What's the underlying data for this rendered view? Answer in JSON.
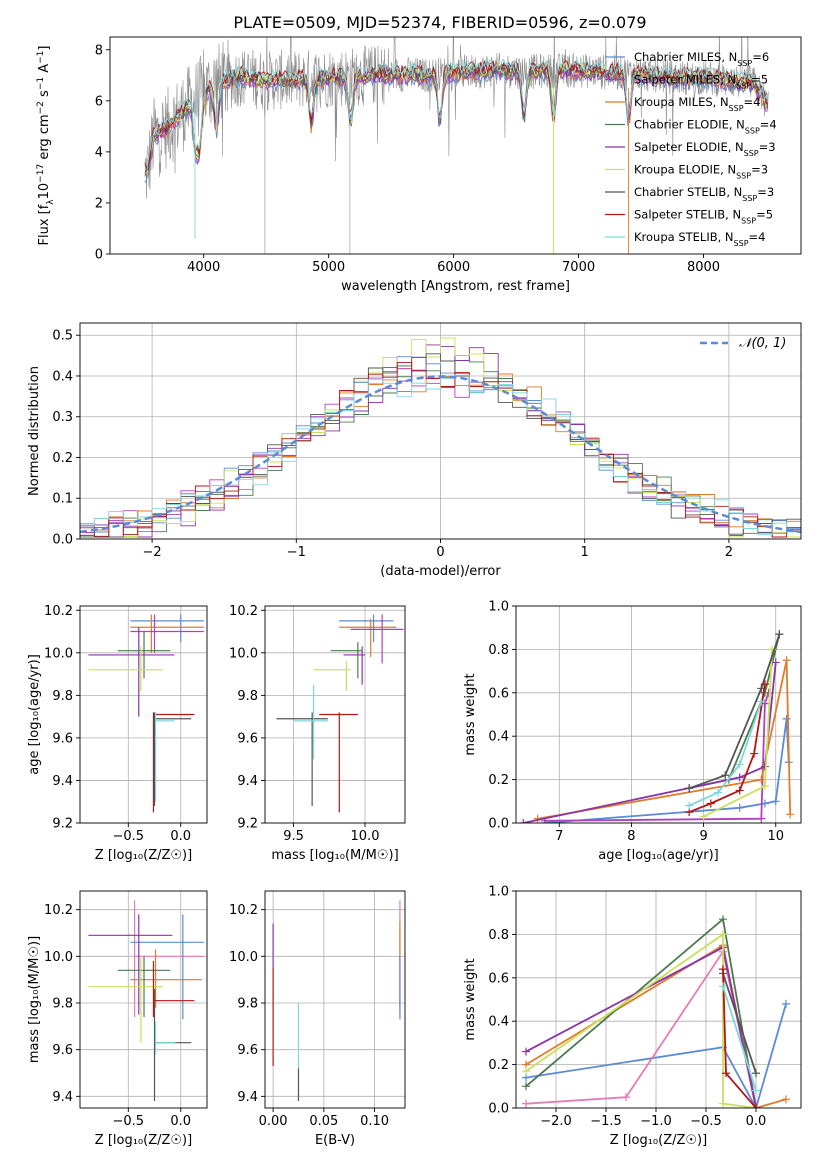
{
  "figure_title": "PLATE=0509, MJD=52374, FIBERID=0596, z=0.079",
  "colors": {
    "Chabrier MILES": "#5b8bd5",
    "Salpeter MILES": "#b040c0",
    "Kroupa MILES": "#e07b2a",
    "Chabrier ELODIE": "#4d7a50",
    "Salpeter ELODIE": "#8b34a8",
    "Kroupa ELODIE": "#c9e05a",
    "Chabrier STELIB": "#555555",
    "Salpeter STELIB": "#b31616",
    "Kroupa STELIB": "#7fd6dc",
    "pink": "#e07fb6",
    "data": "#8c8c8c",
    "normal": "#5b8bd5"
  },
  "chart_data": [
    {
      "id": "spectrum",
      "type": "line",
      "xlabel": "wavelength [Angstrom, rest frame]",
      "ylabel_parts": [
        "Flux [f",
        "λ",
        "10",
        "−17",
        " erg cm",
        "−2",
        " s",
        "−1",
        " A",
        "−1",
        "]"
      ],
      "xlim": [
        3250,
        8780
      ],
      "ylim": [
        0,
        8.5
      ],
      "xticks": [
        4000,
        5000,
        6000,
        7000,
        8000
      ],
      "yticks": [
        0,
        2,
        4,
        6,
        8
      ],
      "legend": [
        {
          "name": "Chabrier MILES",
          "n": "6"
        },
        {
          "name": "Salpeter MILES",
          "n": "5"
        },
        {
          "name": "Kroupa MILES",
          "n": "4"
        },
        {
          "name": "Chabrier ELODIE",
          "n": "4"
        },
        {
          "name": "Salpeter ELODIE",
          "n": "3"
        },
        {
          "name": "Kroupa ELODIE",
          "n": "3"
        },
        {
          "name": "Chabrier STELIB",
          "n": "3"
        },
        {
          "name": "Salpeter STELIB",
          "n": "5"
        },
        {
          "name": "Kroupa STELIB",
          "n": "4"
        }
      ],
      "continuum_x": [
        3550,
        3600,
        3700,
        3800,
        3900,
        4000,
        4100,
        4300,
        4500,
        4800,
        5000,
        5200,
        5500,
        5800,
        6000,
        6300,
        6600,
        7000,
        7300,
        7500,
        7800,
        8000,
        8200,
        8400,
        8520
      ],
      "continuum_y": [
        3.2,
        4.6,
        4.9,
        5.4,
        5.9,
        6.3,
        6.7,
        6.95,
        6.8,
        6.85,
        6.9,
        6.95,
        7.05,
        7.0,
        7.1,
        7.2,
        7.15,
        7.2,
        7.1,
        7.05,
        6.9,
        6.9,
        6.8,
        6.7,
        5.8
      ],
      "absorption_lines": [
        3934,
        3969,
        4102,
        4861,
        5175,
        5890,
        6563,
        6800,
        7400
      ]
    },
    {
      "id": "residuals",
      "type": "step",
      "xlabel": "(data-model)/error",
      "ylabel": "Normed distribution",
      "xlim": [
        -2.5,
        2.5
      ],
      "ylim": [
        0,
        0.53
      ],
      "xticks": [
        -2,
        -1,
        0,
        1,
        2
      ],
      "xtick_labels": [
        "−2",
        "−1",
        "0",
        "1",
        "2"
      ],
      "yticks": [
        0,
        0.1,
        0.2,
        0.3,
        0.4,
        0.5
      ],
      "ytick_labels": [
        "0.0",
        "0.1",
        "0.2",
        "0.3",
        "0.4",
        "0.5"
      ],
      "legend": [
        "𝒩(0, 1)"
      ],
      "bin_width": 0.1
    },
    {
      "id": "age_vs_Z",
      "type": "errorbar",
      "xlabel": "Z [log₁₀(Z/Z☉)]",
      "ylabel": "age  [log₁₀(age/yr)]",
      "xlim": [
        -0.96,
        0.25
      ],
      "ylim": [
        9.2,
        10.22
      ],
      "xticks": [
        -0.5,
        0
      ],
      "xtick_labels": [
        "−0.5",
        "0.0"
      ],
      "yticks": [
        9.2,
        9.4,
        9.6,
        9.8,
        10.0,
        10.2
      ],
      "ytick_labels": [
        "9.2",
        "9.4",
        "9.6",
        "9.8",
        "10.0",
        "10.2"
      ],
      "points": [
        {
          "c": "Chabrier MILES",
          "x": 0.0,
          "y": 10.15,
          "xe": [
            -0.48,
            0.22
          ],
          "ye": [
            10.05,
            10.18
          ]
        },
        {
          "c": "Kroupa MILES",
          "x": -0.28,
          "y": 10.12,
          "xe": [
            -0.48,
            0.22
          ],
          "ye": [
            10.0,
            10.18
          ]
        },
        {
          "c": "Salpeter MILES",
          "x": -0.25,
          "y": 10.1,
          "xe": [
            -0.48,
            0.22
          ],
          "ye": [
            10.0,
            10.18
          ]
        },
        {
          "c": "Chabrier ELODIE",
          "x": -0.35,
          "y": 10.01,
          "xe": [
            -0.6,
            -0.1
          ],
          "ye": [
            9.88,
            10.1
          ]
        },
        {
          "c": "Salpeter ELODIE",
          "x": -0.4,
          "y": 9.99,
          "xe": [
            -0.88,
            -0.06
          ],
          "ye": [
            9.7,
            10.12
          ]
        },
        {
          "c": "Kroupa ELODIE",
          "x": -0.38,
          "y": 9.92,
          "xe": [
            -0.88,
            -0.17
          ],
          "ye": [
            9.82,
            10.03
          ]
        },
        {
          "c": "Salpeter STELIB",
          "x": -0.26,
          "y": 9.71,
          "xe": [
            -0.26,
            0.13
          ],
          "ye": [
            9.25,
            9.72
          ]
        },
        {
          "c": "Chabrier STELIB",
          "x": -0.25,
          "y": 9.69,
          "xe": [
            -0.25,
            0.1
          ],
          "ye": [
            9.28,
            9.72
          ]
        },
        {
          "c": "Kroupa STELIB",
          "x": -0.24,
          "y": 9.68,
          "xe": [
            -0.24,
            -0.06
          ],
          "ye": [
            9.3,
            9.72
          ]
        }
      ]
    },
    {
      "id": "age_vs_mass",
      "type": "errorbar",
      "xlabel": "mass [log₁₀(M/M☉)]",
      "ylabel": "",
      "xlim": [
        9.3,
        10.28
      ],
      "ylim": [
        9.2,
        10.22
      ],
      "xticks": [
        9.5,
        10.0
      ],
      "xtick_labels": [
        "9.5",
        "10.0"
      ],
      "yticks": [
        9.2,
        9.4,
        9.6,
        9.8,
        10.0,
        10.2
      ],
      "ytick_labels": [
        "9.2",
        "9.4",
        "9.6",
        "9.8",
        "10.0",
        "10.2"
      ],
      "points": [
        {
          "c": "Chabrier MILES",
          "x": 10.06,
          "y": 10.15,
          "xe": [
            9.82,
            10.2
          ],
          "ye": [
            10.05,
            10.18
          ]
        },
        {
          "c": "Kroupa MILES",
          "x": 10.04,
          "y": 10.12,
          "xe": [
            9.82,
            10.22
          ],
          "ye": [
            9.98,
            10.16
          ]
        },
        {
          "c": "Salpeter MILES",
          "x": 10.12,
          "y": 10.11,
          "xe": [
            9.9,
            10.27
          ],
          "ye": [
            9.95,
            10.18
          ]
        },
        {
          "c": "Chabrier ELODIE",
          "x": 9.95,
          "y": 10.01,
          "xe": [
            9.76,
            9.98
          ],
          "ye": [
            9.88,
            10.05
          ]
        },
        {
          "c": "Salpeter ELODIE",
          "x": 9.98,
          "y": 9.99,
          "xe": [
            9.85,
            10.0
          ],
          "ye": [
            9.85,
            10.03
          ]
        },
        {
          "c": "Kroupa ELODIE",
          "x": 9.87,
          "y": 9.92,
          "xe": [
            9.64,
            9.9
          ],
          "ye": [
            9.82,
            9.96
          ]
        },
        {
          "c": "Salpeter STELIB",
          "x": 9.82,
          "y": 9.71,
          "xe": [
            9.68,
            9.95
          ],
          "ye": [
            9.25,
            9.72
          ]
        },
        {
          "c": "Chabrier STELIB",
          "x": 9.63,
          "y": 9.69,
          "xe": [
            9.38,
            9.74
          ],
          "ye": [
            9.28,
            9.72
          ]
        },
        {
          "c": "Kroupa STELIB",
          "x": 9.64,
          "y": 9.68,
          "xe": [
            9.5,
            9.74
          ],
          "ye": [
            9.5,
            9.85
          ]
        }
      ]
    },
    {
      "id": "mw_vs_age",
      "type": "line",
      "xlabel": "age  [log₁₀(age/yr)]",
      "ylabel": "mass weight",
      "xlim": [
        6.4,
        10.35
      ],
      "ylim": [
        0,
        1.0
      ],
      "xticks": [
        7,
        8,
        9,
        10
      ],
      "xtick_labels": [
        "7",
        "8",
        "9",
        "10"
      ],
      "yticks": [
        0,
        0.2,
        0.4,
        0.6,
        0.8,
        1.0
      ],
      "ytick_labels": [
        "0.0",
        "0.2",
        "0.4",
        "0.6",
        "0.8",
        "1.0"
      ],
      "series": [
        {
          "c": "Chabrier MILES",
          "x": [
            6.8,
            9.5,
            9.85,
            10.0,
            10.15,
            10.18
          ],
          "y": [
            0.0,
            0.07,
            0.09,
            0.1,
            0.48,
            0.28
          ]
        },
        {
          "c": "Salpeter MILES",
          "x": [
            6.8,
            9.8,
            9.85,
            9.9
          ],
          "y": [
            0.01,
            0.02,
            0.55,
            0.6
          ]
        },
        {
          "c": "Kroupa MILES",
          "x": [
            6.7,
            9.8,
            10.15,
            10.2
          ],
          "y": [
            0.02,
            0.2,
            0.75,
            0.04
          ]
        },
        {
          "c": "Chabrier ELODIE",
          "x": [
            8.8,
            9.35,
            9.85,
            10.05
          ],
          "y": [
            0.16,
            0.2,
            0.6,
            0.87
          ]
        },
        {
          "c": "Salpeter ELODIE",
          "x": [
            6.5,
            9.5,
            9.85,
            10.0
          ],
          "y": [
            0.0,
            0.21,
            0.26,
            0.74
          ]
        },
        {
          "c": "Kroupa ELODIE",
          "x": [
            9.0,
            9.85,
            9.95
          ],
          "y": [
            0.03,
            0.17,
            0.8
          ]
        },
        {
          "c": "Chabrier STELIB",
          "x": [
            8.8,
            9.3,
            9.8,
            10.05
          ],
          "y": [
            0.16,
            0.22,
            0.62,
            0.87
          ]
        },
        {
          "c": "Salpeter STELIB",
          "x": [
            8.8,
            9.1,
            9.5,
            9.7,
            9.85
          ],
          "y": [
            0.05,
            0.09,
            0.15,
            0.32,
            0.64
          ]
        },
        {
          "c": "Kroupa STELIB",
          "x": [
            8.8,
            9.2,
            9.5,
            9.8
          ],
          "y": [
            0.08,
            0.14,
            0.27,
            0.56
          ]
        }
      ]
    },
    {
      "id": "mass_vs_Z",
      "type": "errorbar",
      "xlabel": "Z [log₁₀(Z/Z☉)]",
      "ylabel": "mass [log₁₀(M/M☉)]",
      "xlim": [
        -0.96,
        0.25
      ],
      "ylim": [
        9.35,
        10.28
      ],
      "xticks": [
        -0.5,
        0
      ],
      "xtick_labels": [
        "−0.5",
        "0.0"
      ],
      "yticks": [
        9.4,
        9.6,
        9.8,
        10.0,
        10.2
      ],
      "ytick_labels": [
        "9.4",
        "9.6",
        "9.8",
        "10.0",
        "10.2"
      ],
      "points": [
        {
          "c": "pink",
          "x": -0.44,
          "y": 10.0,
          "xe": [
            -0.44,
            0.22
          ],
          "ye": [
            9.74,
            10.24
          ]
        },
        {
          "c": "Chabrier MILES",
          "x": 0.02,
          "y": 10.06,
          "xe": [
            -0.48,
            0.22
          ],
          "ye": [
            9.73,
            10.18
          ]
        },
        {
          "c": "Salpeter ELODIE",
          "x": -0.4,
          "y": 10.09,
          "xe": [
            -0.88,
            -0.08
          ],
          "ye": [
            9.75,
            10.18
          ]
        },
        {
          "c": "Kroupa MILES",
          "x": -0.24,
          "y": 9.9,
          "xe": [
            -0.48,
            0.2
          ],
          "ye": [
            9.78,
            10.03
          ]
        },
        {
          "c": "Chabrier ELODIE",
          "x": -0.35,
          "y": 9.94,
          "xe": [
            -0.6,
            -0.1
          ],
          "ye": [
            9.74,
            10.0
          ]
        },
        {
          "c": "Kroupa ELODIE",
          "x": -0.38,
          "y": 9.87,
          "xe": [
            -0.88,
            -0.17
          ],
          "ye": [
            9.63,
            10.0
          ]
        },
        {
          "c": "Salpeter STELIB",
          "x": -0.26,
          "y": 9.81,
          "xe": [
            -0.26,
            0.13
          ],
          "ye": [
            9.74,
            9.98
          ]
        },
        {
          "c": "Chabrier STELIB",
          "x": -0.25,
          "y": 9.63,
          "xe": [
            -0.25,
            0.1
          ],
          "ye": [
            9.38,
            9.86
          ]
        },
        {
          "c": "Kroupa STELIB",
          "x": -0.24,
          "y": 9.63,
          "xe": [
            -0.24,
            -0.05
          ],
          "ye": [
            9.58,
            9.72
          ]
        }
      ]
    },
    {
      "id": "mass_vs_ebv",
      "type": "errorbar",
      "xlabel": "E(B-V)",
      "ylabel": "",
      "xlim": [
        -0.008,
        0.13
      ],
      "ylim": [
        9.35,
        10.28
      ],
      "xticks": [
        0,
        0.05,
        0.1
      ],
      "xtick_labels": [
        "0.00",
        "0.05",
        "0.10"
      ],
      "yticks": [
        9.4,
        9.6,
        9.8,
        10.0,
        10.2
      ],
      "ytick_labels": [
        "9.4",
        "9.6",
        "9.8",
        "10.0",
        "10.2"
      ],
      "points": [
        {
          "c": "Salpeter ELODIE",
          "x": 0.0,
          "ye": [
            9.95,
            10.14
          ]
        },
        {
          "c": "Salpeter STELIB",
          "x": 0.0,
          "ye": [
            9.53,
            9.95
          ]
        },
        {
          "c": "Chabrier STELIB",
          "x": 0.025,
          "ye": [
            9.38,
            9.52
          ]
        },
        {
          "c": "Kroupa STELIB",
          "x": 0.025,
          "ye": [
            9.52,
            9.8
          ]
        },
        {
          "c": "pink",
          "x": 0.125,
          "ye": [
            9.75,
            10.24
          ]
        },
        {
          "c": "Kroupa MILES",
          "x": 0.125,
          "ye": [
            9.78,
            10.15
          ]
        },
        {
          "c": "Chabrier MILES",
          "x": 0.125,
          "ye": [
            9.73,
            10.0
          ]
        }
      ]
    },
    {
      "id": "mw_vs_Z",
      "type": "line",
      "xlabel": "Z [log₁₀(Z/Z☉)]",
      "ylabel": "mass weight",
      "xlim": [
        -2.4,
        0.45
      ],
      "ylim": [
        0,
        1.0
      ],
      "xticks": [
        -2.0,
        -1.5,
        -1.0,
        -0.5,
        0.0
      ],
      "xtick_labels": [
        "−2.0",
        "−1.5",
        "−1.0",
        "−0.5",
        "0.0"
      ],
      "yticks": [
        0,
        0.2,
        0.4,
        0.6,
        0.8,
        1.0
      ],
      "ytick_labels": [
        "0.0",
        "0.2",
        "0.4",
        "0.6",
        "0.8",
        "1.0"
      ],
      "series": [
        {
          "c": "Chabrier MILES",
          "x": [
            -2.3,
            -0.33,
            0.0,
            0.3
          ],
          "y": [
            0.14,
            0.28,
            0.0,
            0.48
          ]
        },
        {
          "c": "pink",
          "x": [
            -2.3,
            -1.3,
            -0.33,
            0.0
          ],
          "y": [
            0.02,
            0.05,
            0.72,
            0.0
          ]
        },
        {
          "c": "Kroupa MILES",
          "x": [
            -2.3,
            -0.33,
            0.0,
            0.3
          ],
          "y": [
            0.2,
            0.75,
            0.0,
            0.04
          ]
        },
        {
          "c": "Chabrier ELODIE",
          "x": [
            -2.3,
            -0.33,
            0.0
          ],
          "y": [
            0.1,
            0.87,
            0.0
          ]
        },
        {
          "c": "Salpeter ELODIE",
          "x": [
            -2.3,
            -0.33,
            0.0
          ],
          "y": [
            0.26,
            0.74,
            0.0
          ]
        },
        {
          "c": "Kroupa ELODIE",
          "x": [
            -2.3,
            -0.33,
            -0.33,
            0.0
          ],
          "y": [
            0.17,
            0.8,
            0.02,
            0.0
          ]
        },
        {
          "c": "Chabrier STELIB",
          "x": [
            -0.33,
            0.0
          ],
          "y": [
            0.62,
            0.16
          ]
        },
        {
          "c": "Salpeter STELIB",
          "x": [
            -0.33,
            -0.3,
            0.0
          ],
          "y": [
            0.64,
            0.16,
            0.0
          ]
        },
        {
          "c": "Kroupa STELIB",
          "x": [
            -0.33,
            0.0
          ],
          "y": [
            0.56,
            0.08
          ]
        }
      ]
    }
  ]
}
